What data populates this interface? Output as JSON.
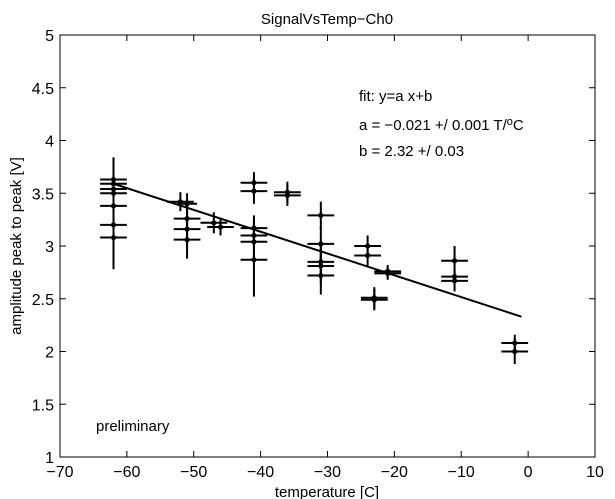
{
  "chart_data": {
    "type": "scatter",
    "title": "SignalVsTemp−Ch0",
    "xlabel": "temperature [C]",
    "ylabel": "amplitude peak to peak [V]",
    "xlim": [
      -70,
      10
    ],
    "ylim": [
      1,
      5
    ],
    "xticks": [
      -70,
      -60,
      -50,
      -40,
      -30,
      -20,
      -10,
      0,
      10
    ],
    "yticks": [
      1,
      1.5,
      2,
      2.5,
      3,
      3.5,
      4,
      4.5,
      5
    ],
    "xtick_labels": [
      "−70",
      "−60",
      "−50",
      "−40",
      "−30",
      "−20",
      "−10",
      "0",
      "10"
    ],
    "ytick_labels": [
      "1",
      "1.5",
      "2",
      "2.5",
      "3",
      "3.5",
      "4",
      "4.5",
      "5"
    ],
    "grid": false,
    "annotations": {
      "fit_label": "fit: y=a x+b",
      "a_prefix": "a = −0.021 +/ 0.001 T/",
      "a_sup": "o",
      "a_suffix": "C",
      "b_text": "b = 2.32 +/ 0.03",
      "preliminary": "preliminary"
    },
    "fit_line": {
      "x": [
        -62,
        -1
      ],
      "y": [
        3.59,
        2.33
      ]
    },
    "points": [
      {
        "x": -62,
        "y": 3.63,
        "xerr": 2,
        "yerr": 0.21
      },
      {
        "x": -62,
        "y": 3.59,
        "xerr": 2,
        "yerr": 0.18
      },
      {
        "x": -62,
        "y": 3.54,
        "xerr": 2,
        "yerr": 0.18
      },
      {
        "x": -62,
        "y": 3.5,
        "xerr": 2,
        "yerr": 0.2
      },
      {
        "x": -62,
        "y": 3.38,
        "xerr": 2,
        "yerr": 0.18
      },
      {
        "x": -62,
        "y": 3.2,
        "xerr": 2,
        "yerr": 0.18
      },
      {
        "x": -62,
        "y": 3.08,
        "xerr": 2,
        "yerr": 0.3
      },
      {
        "x": -52,
        "y": 3.42,
        "xerr": 2,
        "yerr": 0.09
      },
      {
        "x": -51,
        "y": 3.4,
        "xerr": 1.5,
        "yerr": 0.1
      },
      {
        "x": -51,
        "y": 3.26,
        "xerr": 2,
        "yerr": 0.16
      },
      {
        "x": -51,
        "y": 3.16,
        "xerr": 2,
        "yerr": 0.16
      },
      {
        "x": -51,
        "y": 3.06,
        "xerr": 2,
        "yerr": 0.18
      },
      {
        "x": -47,
        "y": 3.22,
        "xerr": 2,
        "yerr": 0.1
      },
      {
        "x": -46,
        "y": 3.18,
        "xerr": 2,
        "yerr": 0.08
      },
      {
        "x": -41,
        "y": 3.6,
        "xerr": 2,
        "yerr": 0.1
      },
      {
        "x": -41,
        "y": 3.52,
        "xerr": 2,
        "yerr": 0.12
      },
      {
        "x": -41,
        "y": 3.17,
        "xerr": 2,
        "yerr": 0.12
      },
      {
        "x": -41,
        "y": 3.1,
        "xerr": 2,
        "yerr": 0.14
      },
      {
        "x": -41,
        "y": 3.04,
        "xerr": 2,
        "yerr": 0.16
      },
      {
        "x": -41,
        "y": 2.87,
        "xerr": 2,
        "yerr": 0.35
      },
      {
        "x": -36,
        "y": 3.51,
        "xerr": 2,
        "yerr": 0.1
      },
      {
        "x": -36,
        "y": 3.48,
        "xerr": 2,
        "yerr": 0.1
      },
      {
        "x": -31,
        "y": 3.29,
        "xerr": 2,
        "yerr": 0.13
      },
      {
        "x": -31,
        "y": 3.02,
        "xerr": 2,
        "yerr": 0.16
      },
      {
        "x": -31,
        "y": 2.85,
        "xerr": 2,
        "yerr": 0.16
      },
      {
        "x": -31,
        "y": 2.81,
        "xerr": 2,
        "yerr": 0.16
      },
      {
        "x": -31,
        "y": 2.72,
        "xerr": 2,
        "yerr": 0.18
      },
      {
        "x": -24,
        "y": 3.0,
        "xerr": 2,
        "yerr": 0.1
      },
      {
        "x": -24,
        "y": 2.91,
        "xerr": 2,
        "yerr": 0.1
      },
      {
        "x": -23,
        "y": 2.51,
        "xerr": 2,
        "yerr": 0.1
      },
      {
        "x": -23,
        "y": 2.49,
        "xerr": 2,
        "yerr": 0.1
      },
      {
        "x": -21,
        "y": 2.76,
        "xerr": 2,
        "yerr": 0.06
      },
      {
        "x": -21,
        "y": 2.74,
        "xerr": 2,
        "yerr": 0.06
      },
      {
        "x": -11,
        "y": 2.86,
        "xerr": 2,
        "yerr": 0.14
      },
      {
        "x": -11,
        "y": 2.71,
        "xerr": 2,
        "yerr": 0.06
      },
      {
        "x": -11,
        "y": 2.67,
        "xerr": 2,
        "yerr": 0.1
      },
      {
        "x": -2,
        "y": 2.08,
        "xerr": 2,
        "yerr": 0.08
      },
      {
        "x": -2,
        "y": 2.0,
        "xerr": 2,
        "yerr": 0.12
      }
    ]
  }
}
